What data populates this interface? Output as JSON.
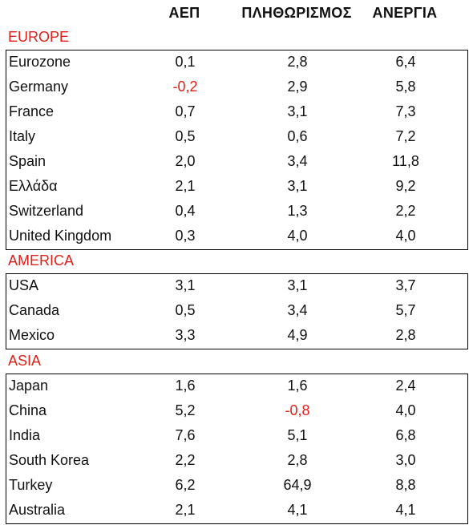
{
  "columns": [
    "ΑΕΠ",
    "ΠΛΗΘΩΡΙΣΜΟΣ",
    "ΑΝΕΡΓΙΑ"
  ],
  "colors": {
    "region": "#e0201a",
    "negative": "#e0201a",
    "text": "#111111",
    "border": "#000000"
  },
  "regions": [
    {
      "label": "EUROPE",
      "rows": [
        {
          "name": "Eurozone",
          "gdp": "0,1",
          "inflation": "2,8",
          "unemployment": "6,4"
        },
        {
          "name": "Germany",
          "gdp": "-0,2",
          "inflation": "2,9",
          "unemployment": "5,8"
        },
        {
          "name": "France",
          "gdp": "0,7",
          "inflation": "3,1",
          "unemployment": "7,3"
        },
        {
          "name": "Italy",
          "gdp": "0,5",
          "inflation": "0,6",
          "unemployment": "7,2"
        },
        {
          "name": "Spain",
          "gdp": "2,0",
          "inflation": "3,4",
          "unemployment": "11,8"
        },
        {
          "name": "Ελλάδα",
          "gdp": "2,1",
          "inflation": "3,1",
          "unemployment": "9,2"
        },
        {
          "name": "Switzerland",
          "gdp": "0,4",
          "inflation": "1,3",
          "unemployment": "2,2"
        },
        {
          "name": "United Kingdom",
          "gdp": "0,3",
          "inflation": "4,0",
          "unemployment": "4,0"
        }
      ]
    },
    {
      "label": "AMERICA",
      "rows": [
        {
          "name": "USA",
          "gdp": "3,1",
          "inflation": "3,1",
          "unemployment": "3,7"
        },
        {
          "name": "Canada",
          "gdp": "0,5",
          "inflation": "3,4",
          "unemployment": "5,7"
        },
        {
          "name": "Mexico",
          "gdp": "3,3",
          "inflation": "4,9",
          "unemployment": "2,8"
        }
      ]
    },
    {
      "label": "ASIA",
      "rows": [
        {
          "name": "Japan",
          "gdp": "1,6",
          "inflation": "1,6",
          "unemployment": "2,4"
        },
        {
          "name": "China",
          "gdp": "5,2",
          "inflation": "-0,8",
          "unemployment": "4,0"
        },
        {
          "name": "India",
          "gdp": "7,6",
          "inflation": "5,1",
          "unemployment": "6,8"
        },
        {
          "name": "South Korea",
          "gdp": "2,2",
          "inflation": "2,8",
          "unemployment": "3,0"
        },
        {
          "name": "Turkey",
          "gdp": "6,2",
          "inflation": "64,9",
          "unemployment": "8,8"
        },
        {
          "name": "Australia",
          "gdp": "2,1",
          "inflation": "4,1",
          "unemployment": "4,1"
        }
      ]
    }
  ]
}
